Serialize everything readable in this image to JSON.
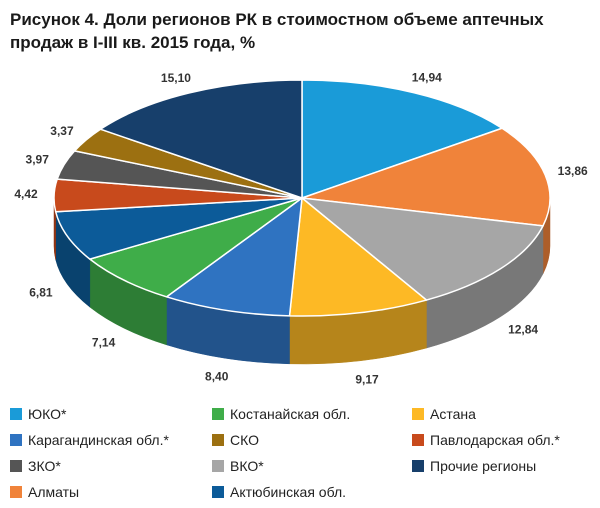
{
  "chart_data": {
    "type": "pie",
    "variant": "3d",
    "title": "Рисунок 4. Доли регионов РК в стоимостном объеме аптечных продаж в I-III кв. 2015 года, %",
    "unit": "%",
    "legend_position": "bottom",
    "slices": [
      {
        "name": "ЮКО*",
        "value": 14.94,
        "label": "14,94",
        "color": "#1a9bd8"
      },
      {
        "name": "Алматы",
        "value": 13.86,
        "label": "13,86",
        "color": "#f0833a"
      },
      {
        "name": "ВКО*",
        "value": 12.84,
        "label": "12,84",
        "color": "#a6a6a6"
      },
      {
        "name": "Астана",
        "value": 9.17,
        "label": "9,17",
        "color": "#fdb925"
      },
      {
        "name": "Карагандинская обл.*",
        "value": 8.4,
        "label": "8,40",
        "color": "#2f73c1"
      },
      {
        "name": "Костанайская обл.",
        "value": 7.14,
        "label": "7,14",
        "color": "#3fad49"
      },
      {
        "name": "Актюбинская обл.",
        "value": 6.81,
        "label": "6,81",
        "color": "#0c5b99"
      },
      {
        "name": "Павлодарская обл.*",
        "value": 4.42,
        "label": "4,42",
        "color": "#c84a1c"
      },
      {
        "name": "ЗКО*",
        "value": 3.97,
        "label": "3,97",
        "color": "#555555"
      },
      {
        "name": "СКО",
        "value": 3.37,
        "label": "3,37",
        "color": "#9c7011"
      },
      {
        "name": "Прочие регионы",
        "value": 15.1,
        "label": "15,10",
        "color": "#173f6b"
      }
    ],
    "legend_order": [
      "ЮКО*",
      "Костанайская обл.",
      "Астана",
      "Карагандинская обл.*",
      "СКО",
      "Павлодарская обл.*",
      "ЗКО*",
      "ВКО*",
      "Прочие регионы",
      "Алматы",
      "Актюбинская обл."
    ]
  }
}
